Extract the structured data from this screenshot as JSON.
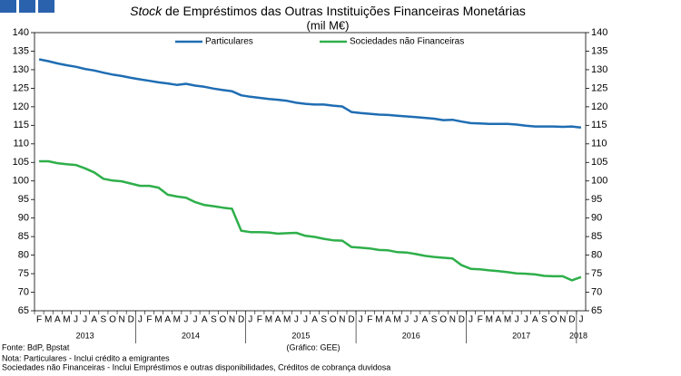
{
  "chart_data": {
    "type": "line",
    "title_emphasis": "Stock",
    "title": "de Empréstimos das Outras Instituições Financeiras Monetárias",
    "subtitle": "(mil M€)",
    "categories": [
      "F",
      "M",
      "A",
      "M",
      "J",
      "J",
      "A",
      "S",
      "O",
      "N",
      "D",
      "J",
      "F",
      "M",
      "A",
      "M",
      "J",
      "J",
      "A",
      "S",
      "O",
      "N",
      "D",
      "J",
      "F",
      "M",
      "A",
      "M",
      "J",
      "J",
      "A",
      "S",
      "O",
      "N",
      "D",
      "J",
      "F",
      "M",
      "A",
      "M",
      "J",
      "J",
      "A",
      "S",
      "O",
      "N",
      "D",
      "J",
      "F",
      "M",
      "A",
      "M",
      "J",
      "J",
      "A",
      "S",
      "O",
      "N",
      "D",
      "J"
    ],
    "years": [
      "2013",
      "2014",
      "2015",
      "2016",
      "2017",
      "2018"
    ],
    "series": [
      {
        "name": "Particulares",
        "color": "#1f6db3",
        "values": [
          132.8,
          132.3,
          131.7,
          131.2,
          130.8,
          130.2,
          129.8,
          129.2,
          128.7,
          128.3,
          127.8,
          127.4,
          127.0,
          126.6,
          126.3,
          125.9,
          126.2,
          125.7,
          125.4,
          124.9,
          124.5,
          124.2,
          123.1,
          122.7,
          122.4,
          122.1,
          121.9,
          121.6,
          121.1,
          120.8,
          120.6,
          120.6,
          120.3,
          120.1,
          118.6,
          118.3,
          118.1,
          117.9,
          117.8,
          117.6,
          117.4,
          117.2,
          117.0,
          116.8,
          116.4,
          116.5,
          116.0,
          115.6,
          115.5,
          115.4,
          115.4,
          115.4,
          115.2,
          114.9,
          114.7,
          114.7,
          114.7,
          114.6,
          114.7,
          114.4
        ]
      },
      {
        "name": "Sociedades não Financeiras",
        "color": "#2eaf4a",
        "values": [
          105.3,
          105.3,
          104.8,
          104.5,
          104.3,
          103.4,
          102.3,
          100.6,
          100.1,
          99.9,
          99.3,
          98.7,
          98.7,
          98.2,
          96.3,
          95.8,
          95.5,
          94.3,
          93.5,
          93.2,
          92.8,
          92.5,
          86.6,
          86.2,
          86.2,
          86.1,
          85.8,
          85.9,
          86.0,
          85.2,
          84.9,
          84.4,
          84.0,
          83.9,
          82.2,
          82.0,
          81.8,
          81.4,
          81.3,
          80.8,
          80.7,
          80.3,
          79.8,
          79.5,
          79.3,
          79.1,
          77.3,
          76.3,
          76.2,
          75.9,
          75.7,
          75.4,
          75.1,
          75.0,
          74.8,
          74.4,
          74.3,
          74.3,
          73.2,
          74.1
        ]
      }
    ],
    "ylim": [
      65,
      140
    ],
    "yticks": [
      65,
      70,
      75,
      80,
      85,
      90,
      95,
      100,
      105,
      110,
      115,
      120,
      125,
      130,
      135,
      140
    ],
    "y2lim": [
      65,
      140
    ],
    "y2ticks": [
      65,
      70,
      75,
      80,
      85,
      90,
      95,
      100,
      105,
      110,
      115,
      120,
      125,
      130,
      135,
      140
    ],
    "legend": "top",
    "source": "Fonte: BdP, Bpstat",
    "credit": "(Gráfico: GEE)",
    "notes": [
      "Nota: Particulares - Inclui crédito a emigrantes",
      "Sociedades não Financeiras - Inclui Empréstimos e outras disponibilidades, Créditos de cobrança duvidosa"
    ]
  }
}
